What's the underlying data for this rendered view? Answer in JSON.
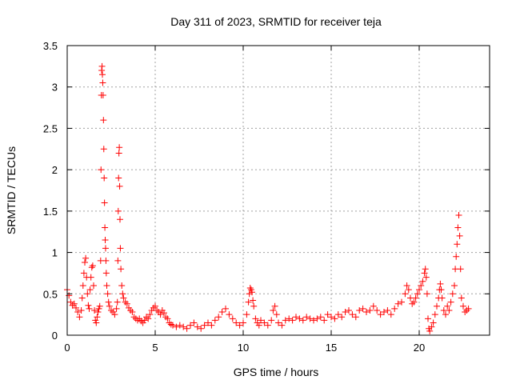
{
  "chart_data": {
    "type": "scatter",
    "title": "Day 311 of 2023, SRMTID for receiver teja",
    "xlabel": "GPS time / hours",
    "ylabel": "SRMTID / TECUs",
    "xlim": [
      0,
      24
    ],
    "ylim": [
      0,
      3.5
    ],
    "xticks": [
      0,
      5,
      10,
      15,
      20
    ],
    "yticks": [
      0,
      0.5,
      1,
      1.5,
      2,
      2.5,
      3,
      3.5
    ],
    "xtick_labels": [
      "0",
      "5",
      "10",
      "15",
      "20"
    ],
    "ytick_labels": [
      "0",
      "0.5",
      "1",
      "1.5",
      "2",
      "2.5",
      "3",
      "3.5"
    ],
    "grid": true,
    "marker": "+",
    "color": "#ff0000",
    "series": [
      {
        "name": "SRMTID",
        "points": [
          [
            0.0,
            0.55
          ],
          [
            0.1,
            0.48
          ],
          [
            0.2,
            0.4
          ],
          [
            0.3,
            0.36
          ],
          [
            0.4,
            0.38
          ],
          [
            0.5,
            0.33
          ],
          [
            0.6,
            0.28
          ],
          [
            0.7,
            0.22
          ],
          [
            0.8,
            0.3
          ],
          [
            0.85,
            0.45
          ],
          [
            0.9,
            0.6
          ],
          [
            0.95,
            0.75
          ],
          [
            1.0,
            0.88
          ],
          [
            1.05,
            0.93
          ],
          [
            1.1,
            0.7
          ],
          [
            1.15,
            0.5
          ],
          [
            1.2,
            0.36
          ],
          [
            1.25,
            0.32
          ],
          [
            1.3,
            0.55
          ],
          [
            1.35,
            0.7
          ],
          [
            1.4,
            0.82
          ],
          [
            1.45,
            0.84
          ],
          [
            1.5,
            0.6
          ],
          [
            1.55,
            0.3
          ],
          [
            1.6,
            0.18
          ],
          [
            1.65,
            0.15
          ],
          [
            1.7,
            0.22
          ],
          [
            1.75,
            0.28
          ],
          [
            1.8,
            0.32
          ],
          [
            1.85,
            0.35
          ],
          [
            1.9,
            0.9
          ],
          [
            1.92,
            2.0
          ],
          [
            1.94,
            2.9
          ],
          [
            1.96,
            3.2
          ],
          [
            1.98,
            3.25
          ],
          [
            2.0,
            3.15
          ],
          [
            2.02,
            3.05
          ],
          [
            2.04,
            2.9
          ],
          [
            2.06,
            2.6
          ],
          [
            2.08,
            2.25
          ],
          [
            2.1,
            1.9
          ],
          [
            2.12,
            1.6
          ],
          [
            2.14,
            1.3
          ],
          [
            2.16,
            1.15
          ],
          [
            2.18,
            1.05
          ],
          [
            2.2,
            0.9
          ],
          [
            2.22,
            0.75
          ],
          [
            2.25,
            0.6
          ],
          [
            2.3,
            0.5
          ],
          [
            2.35,
            0.4
          ],
          [
            2.4,
            0.35
          ],
          [
            2.5,
            0.3
          ],
          [
            2.6,
            0.28
          ],
          [
            2.7,
            0.25
          ],
          [
            2.8,
            0.32
          ],
          [
            2.85,
            0.4
          ],
          [
            2.88,
            0.9
          ],
          [
            2.9,
            1.5
          ],
          [
            2.92,
            1.9
          ],
          [
            2.94,
            2.2
          ],
          [
            2.96,
            2.27
          ],
          [
            2.98,
            1.8
          ],
          [
            3.0,
            1.4
          ],
          [
            3.02,
            1.05
          ],
          [
            3.05,
            0.8
          ],
          [
            3.1,
            0.6
          ],
          [
            3.15,
            0.5
          ],
          [
            3.2,
            0.45
          ],
          [
            3.3,
            0.4
          ],
          [
            3.4,
            0.38
          ],
          [
            3.5,
            0.33
          ],
          [
            3.6,
            0.3
          ],
          [
            3.7,
            0.28
          ],
          [
            3.8,
            0.22
          ],
          [
            3.9,
            0.2
          ],
          [
            4.0,
            0.18
          ],
          [
            4.1,
            0.2
          ],
          [
            4.2,
            0.17
          ],
          [
            4.3,
            0.15
          ],
          [
            4.4,
            0.18
          ],
          [
            4.5,
            0.22
          ],
          [
            4.6,
            0.2
          ],
          [
            4.7,
            0.25
          ],
          [
            4.8,
            0.3
          ],
          [
            4.9,
            0.33
          ],
          [
            5.0,
            0.35
          ],
          [
            5.1,
            0.3
          ],
          [
            5.2,
            0.28
          ],
          [
            5.3,
            0.25
          ],
          [
            5.4,
            0.3
          ],
          [
            5.5,
            0.27
          ],
          [
            5.6,
            0.22
          ],
          [
            5.7,
            0.2
          ],
          [
            5.8,
            0.15
          ],
          [
            5.9,
            0.13
          ],
          [
            6.0,
            0.12
          ],
          [
            6.2,
            0.1
          ],
          [
            6.4,
            0.12
          ],
          [
            6.6,
            0.1
          ],
          [
            6.8,
            0.08
          ],
          [
            7.0,
            0.12
          ],
          [
            7.2,
            0.15
          ],
          [
            7.4,
            0.1
          ],
          [
            7.6,
            0.08
          ],
          [
            7.8,
            0.12
          ],
          [
            8.0,
            0.15
          ],
          [
            8.2,
            0.12
          ],
          [
            8.4,
            0.18
          ],
          [
            8.6,
            0.22
          ],
          [
            8.8,
            0.28
          ],
          [
            9.0,
            0.32
          ],
          [
            9.2,
            0.25
          ],
          [
            9.4,
            0.2
          ],
          [
            9.6,
            0.15
          ],
          [
            9.8,
            0.12
          ],
          [
            10.0,
            0.15
          ],
          [
            10.2,
            0.25
          ],
          [
            10.3,
            0.4
          ],
          [
            10.35,
            0.5
          ],
          [
            10.4,
            0.57
          ],
          [
            10.45,
            0.55
          ],
          [
            10.5,
            0.52
          ],
          [
            10.55,
            0.42
          ],
          [
            10.6,
            0.35
          ],
          [
            10.7,
            0.2
          ],
          [
            10.8,
            0.15
          ],
          [
            10.9,
            0.12
          ],
          [
            11.0,
            0.18
          ],
          [
            11.2,
            0.15
          ],
          [
            11.4,
            0.12
          ],
          [
            11.6,
            0.18
          ],
          [
            11.7,
            0.3
          ],
          [
            11.8,
            0.35
          ],
          [
            11.9,
            0.25
          ],
          [
            12.0,
            0.15
          ],
          [
            12.2,
            0.12
          ],
          [
            12.4,
            0.18
          ],
          [
            12.6,
            0.2
          ],
          [
            12.8,
            0.18
          ],
          [
            13.0,
            0.22
          ],
          [
            13.2,
            0.2
          ],
          [
            13.4,
            0.18
          ],
          [
            13.6,
            0.22
          ],
          [
            13.8,
            0.2
          ],
          [
            14.0,
            0.18
          ],
          [
            14.2,
            0.2
          ],
          [
            14.4,
            0.22
          ],
          [
            14.6,
            0.18
          ],
          [
            14.8,
            0.25
          ],
          [
            15.0,
            0.22
          ],
          [
            15.2,
            0.2
          ],
          [
            15.4,
            0.25
          ],
          [
            15.6,
            0.22
          ],
          [
            15.8,
            0.28
          ],
          [
            16.0,
            0.3
          ],
          [
            16.2,
            0.25
          ],
          [
            16.4,
            0.22
          ],
          [
            16.6,
            0.3
          ],
          [
            16.8,
            0.32
          ],
          [
            17.0,
            0.28
          ],
          [
            17.2,
            0.3
          ],
          [
            17.4,
            0.35
          ],
          [
            17.6,
            0.3
          ],
          [
            17.8,
            0.25
          ],
          [
            18.0,
            0.28
          ],
          [
            18.2,
            0.3
          ],
          [
            18.4,
            0.25
          ],
          [
            18.6,
            0.32
          ],
          [
            18.8,
            0.38
          ],
          [
            19.0,
            0.4
          ],
          [
            19.2,
            0.5
          ],
          [
            19.3,
            0.6
          ],
          [
            19.4,
            0.55
          ],
          [
            19.5,
            0.45
          ],
          [
            19.6,
            0.38
          ],
          [
            19.7,
            0.4
          ],
          [
            19.8,
            0.45
          ],
          [
            19.9,
            0.5
          ],
          [
            20.0,
            0.55
          ],
          [
            20.1,
            0.6
          ],
          [
            20.2,
            0.65
          ],
          [
            20.3,
            0.75
          ],
          [
            20.35,
            0.8
          ],
          [
            20.4,
            0.7
          ],
          [
            20.45,
            0.5
          ],
          [
            20.5,
            0.2
          ],
          [
            20.55,
            0.08
          ],
          [
            20.6,
            0.05
          ],
          [
            20.7,
            0.1
          ],
          [
            20.8,
            0.15
          ],
          [
            20.9,
            0.25
          ],
          [
            21.0,
            0.35
          ],
          [
            21.1,
            0.45
          ],
          [
            21.15,
            0.55
          ],
          [
            21.2,
            0.62
          ],
          [
            21.25,
            0.55
          ],
          [
            21.3,
            0.45
          ],
          [
            21.4,
            0.3
          ],
          [
            21.5,
            0.25
          ],
          [
            21.6,
            0.35
          ],
          [
            21.7,
            0.3
          ],
          [
            21.8,
            0.4
          ],
          [
            21.9,
            0.5
          ],
          [
            22.0,
            0.6
          ],
          [
            22.05,
            0.8
          ],
          [
            22.1,
            0.95
          ],
          [
            22.15,
            1.1
          ],
          [
            22.2,
            1.3
          ],
          [
            22.25,
            1.45
          ],
          [
            22.3,
            1.2
          ],
          [
            22.35,
            0.8
          ],
          [
            22.4,
            0.45
          ],
          [
            22.5,
            0.35
          ],
          [
            22.6,
            0.28
          ],
          [
            22.7,
            0.3
          ],
          [
            22.8,
            0.32
          ]
        ]
      }
    ]
  }
}
